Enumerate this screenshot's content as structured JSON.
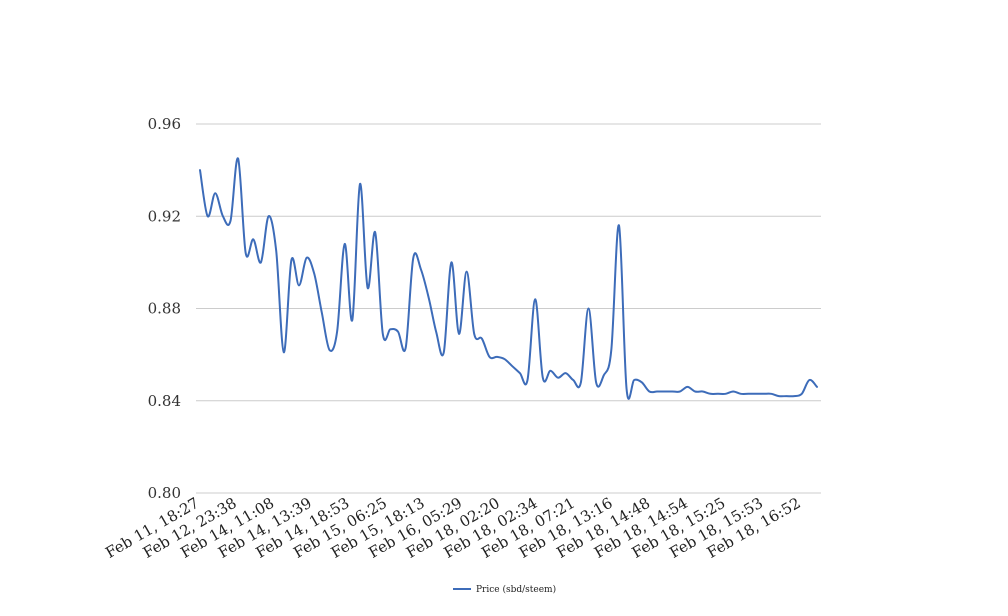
{
  "chart_data": {
    "type": "line",
    "title": "",
    "xlabel": "",
    "ylabel": "",
    "ylim": [
      0.8,
      0.96
    ],
    "y_ticks": [
      "0.80",
      "0.84",
      "0.88",
      "0.92",
      "0.96"
    ],
    "grid": true,
    "legend_position": "bottom-center",
    "x_ticks": [
      "Feb 11, 18:27",
      "Feb 12, 23:38",
      "Feb 14, 11:08",
      "Feb 14, 13:39",
      "Feb 14, 18:53",
      "Feb 15, 06:25",
      "Feb 15, 18:13",
      "Feb 16, 05:29",
      "Feb 18, 02:20",
      "Feb 18, 02:34",
      "Feb 18, 07:21",
      "Feb 18, 13:16",
      "Feb 18, 14:48",
      "Feb 18, 14:54",
      "Feb 18, 15:25",
      "Feb 18, 15:53",
      "Feb 18, 16:52"
    ],
    "series": [
      {
        "name": "Price (sbd/steem)",
        "color": "#3d6cb9",
        "values": [
          0.94,
          0.92,
          0.93,
          0.92,
          0.918,
          0.945,
          0.904,
          0.91,
          0.9,
          0.92,
          0.905,
          0.861,
          0.901,
          0.89,
          0.902,
          0.895,
          0.878,
          0.862,
          0.87,
          0.908,
          0.875,
          0.934,
          0.889,
          0.913,
          0.869,
          0.871,
          0.87,
          0.863,
          0.902,
          0.897,
          0.885,
          0.87,
          0.861,
          0.9,
          0.869,
          0.896,
          0.869,
          0.867,
          0.859,
          0.859,
          0.858,
          0.855,
          0.852,
          0.849,
          0.884,
          0.85,
          0.853,
          0.85,
          0.852,
          0.849,
          0.848,
          0.88,
          0.848,
          0.851,
          0.862,
          0.916,
          0.845,
          0.849,
          0.848,
          0.844,
          0.844,
          0.844,
          0.844,
          0.844,
          0.846,
          0.844,
          0.844,
          0.843,
          0.843,
          0.843,
          0.844,
          0.843,
          0.843,
          0.843,
          0.843,
          0.843,
          0.842,
          0.842,
          0.842,
          0.843,
          0.849,
          0.846
        ]
      }
    ]
  }
}
